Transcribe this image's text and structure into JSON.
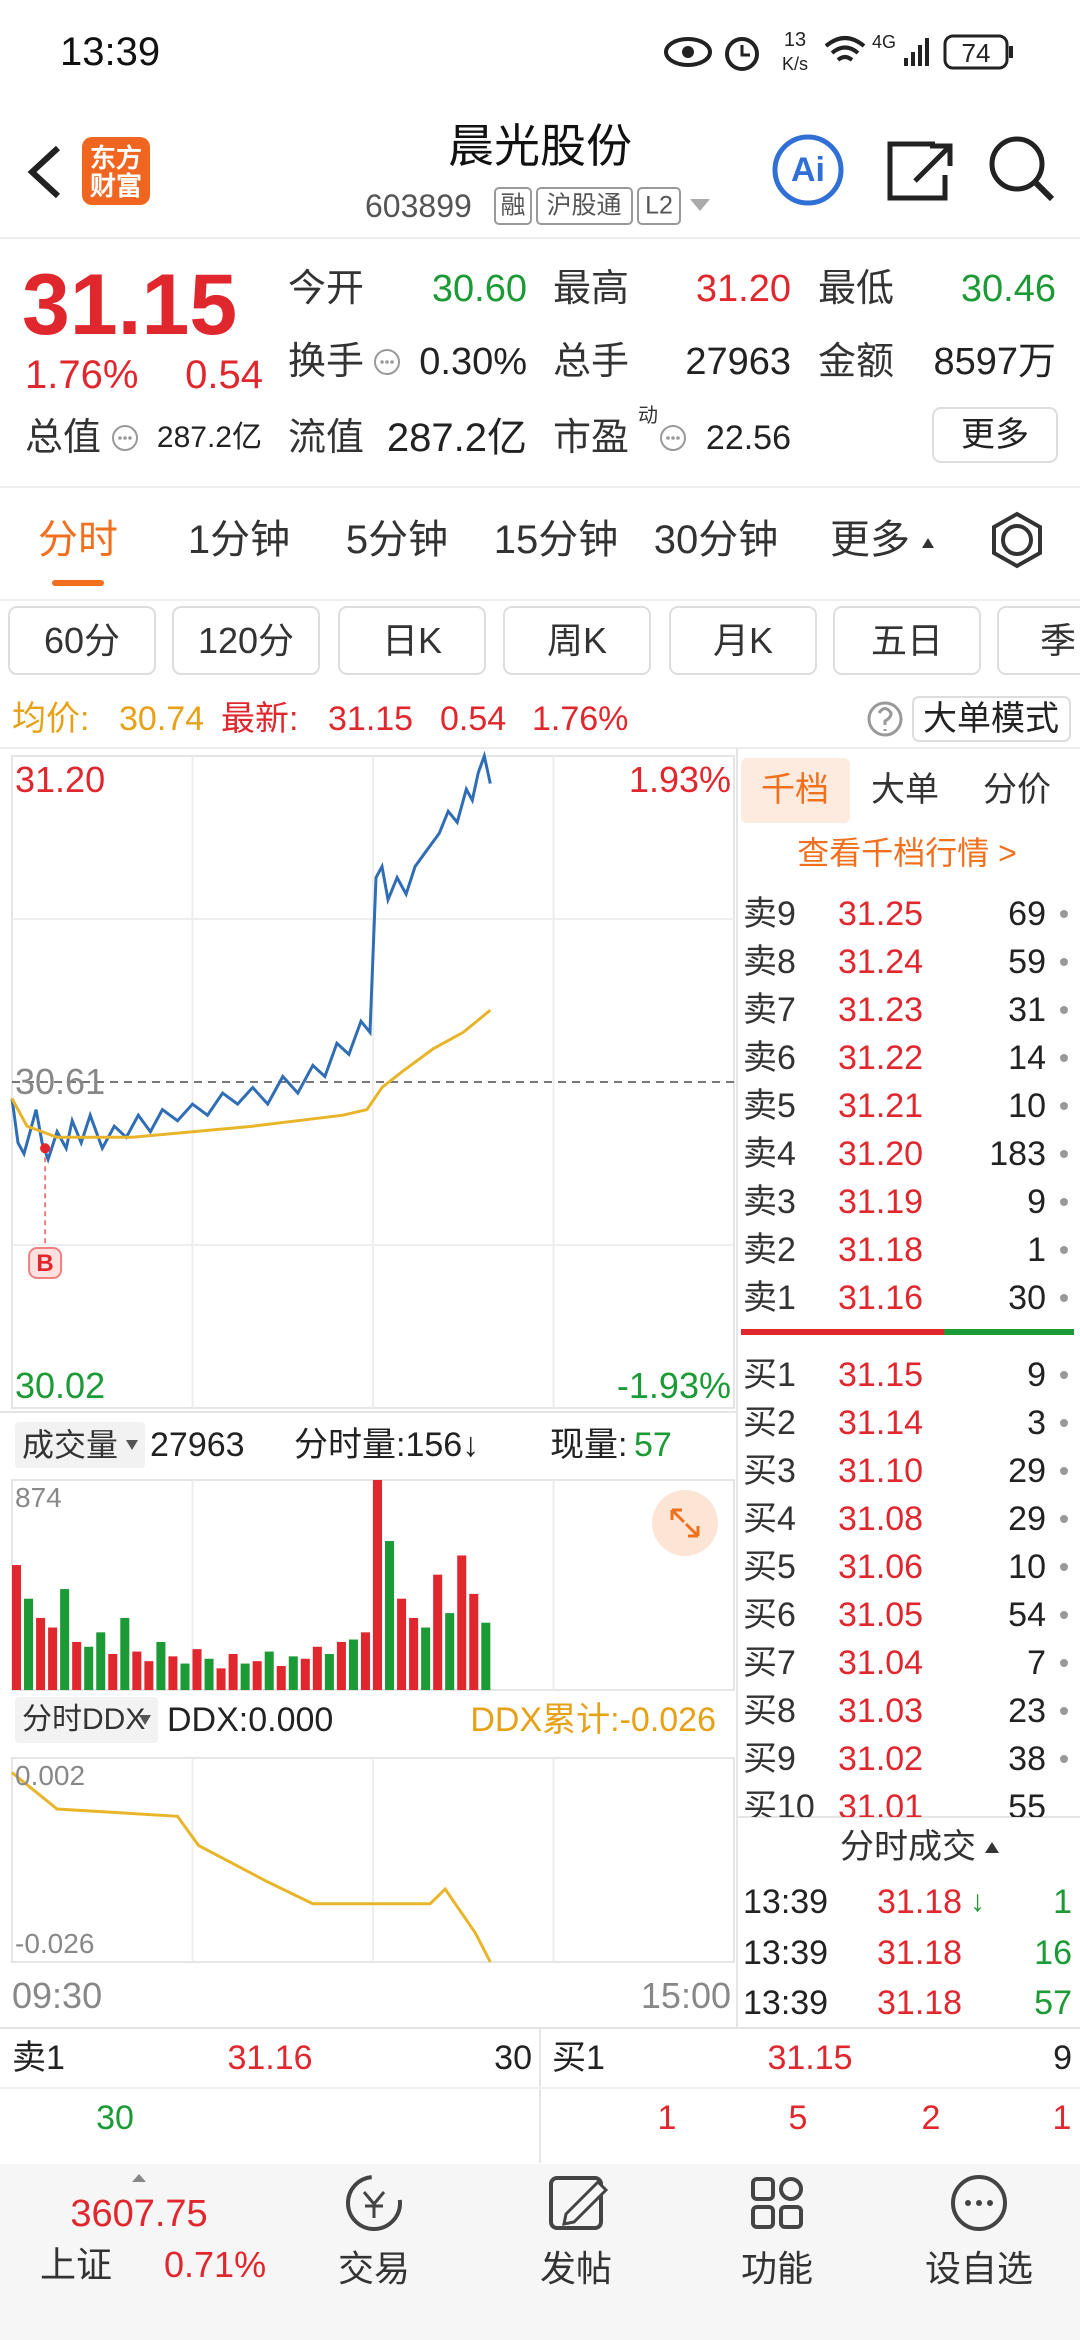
{
  "status_bar": {
    "time": "13:39",
    "speed": "13",
    "speed_unit": "K/s",
    "network": "4G",
    "battery": "74"
  },
  "header": {
    "logo": [
      "东方",
      "财富"
    ],
    "title": "晨光股份",
    "code": "603899",
    "tags": [
      "融",
      "沪股通",
      "L2"
    ],
    "ai": "Ai"
  },
  "quote": {
    "price": "31.15",
    "change_pct": "1.76%",
    "change": "0.54",
    "fields": [
      {
        "label": "今开",
        "value": "30.60"
      },
      {
        "label": "最高",
        "value": "31.20"
      },
      {
        "label": "最低",
        "value": "30.46"
      },
      {
        "label": "换手",
        "value": "0.30%"
      },
      {
        "label": "总手",
        "value": "27963"
      },
      {
        "label": "金额",
        "value": "8597万"
      },
      {
        "label": "总值",
        "value": "287.2亿"
      },
      {
        "label": "流值",
        "value": "287.2亿"
      },
      {
        "label": "市盈",
        "sup": "动",
        "value": "22.56"
      }
    ],
    "more": "更多"
  },
  "tabs": [
    "分时",
    "1分钟",
    "5分钟",
    "15分钟",
    "30分钟",
    "更多"
  ],
  "periods": [
    "60分",
    "120分",
    "日K",
    "周K",
    "月K",
    "五日",
    "季"
  ],
  "info": {
    "avg_label": "均价:",
    "avg": "30.74",
    "latest_label": "最新:",
    "latest": "31.15",
    "change": "0.54",
    "change_pct": "1.76%",
    "mode": "大单模式"
  },
  "chart_data": [
    {
      "type": "line",
      "x": [
        "09:30",
        "09:32",
        "09:34",
        "09:36",
        "09:38",
        "09:40",
        "09:42",
        "09:45",
        "09:48",
        "09:50",
        "09:53",
        "09:56",
        "09:58",
        "10:00",
        "10:04",
        "10:08",
        "10:12",
        "10:16",
        "10:20",
        "10:25",
        "10:30",
        "10:35",
        "10:40",
        "10:45",
        "10:50",
        "10:55",
        "11:00",
        "11:05",
        "11:10",
        "11:14",
        "11:18",
        "11:22",
        "11:26",
        "11:29",
        "13:01",
        "13:03",
        "13:05",
        "13:08",
        "13:11",
        "13:14",
        "13:18",
        "13:22",
        "13:25",
        "13:28",
        "13:31",
        "13:33",
        "13:35",
        "13:37",
        "13:39"
      ],
      "series": [
        {
          "color": "#2f6db5",
          "values": [
            30.58,
            30.5,
            30.48,
            30.52,
            30.56,
            30.5,
            30.47,
            30.52,
            30.49,
            30.54,
            30.5,
            30.55,
            30.52,
            30.49,
            30.53,
            30.51,
            30.55,
            30.52,
            30.56,
            30.54,
            30.57,
            30.55,
            30.59,
            30.57,
            30.6,
            30.57,
            30.62,
            30.59,
            30.64,
            30.62,
            30.68,
            30.66,
            30.72,
            30.7,
            30.98,
            31.0,
            30.94,
            30.98,
            30.95,
            31.0,
            31.03,
            31.06,
            31.1,
            31.08,
            31.14,
            31.12,
            31.17,
            31.2,
            31.15
          ]
        },
        {
          "color": "#e8b52a",
          "x": [
            "09:30",
            "09:35",
            "09:45",
            "10:10",
            "10:50",
            "11:20",
            "11:28",
            "13:03",
            "13:10",
            "13:20",
            "13:30",
            "13:39"
          ],
          "values": [
            30.58,
            30.53,
            30.51,
            30.51,
            30.53,
            30.55,
            30.56,
            30.6,
            30.63,
            30.67,
            30.7,
            30.74
          ]
        }
      ],
      "xlim": [
        "09:30",
        "15:00"
      ],
      "ylim": [
        30.02,
        31.2
      ],
      "yticks": [
        {
          "value": 31.2,
          "label": "31.20"
        },
        {
          "value": 30.61,
          "label": "30.61"
        },
        {
          "value": 30.02,
          "label": "30.02"
        }
      ],
      "y2lim": [
        -1.93,
        1.93
      ],
      "y2ticks": [
        {
          "value": 1.93,
          "label": "1.93%"
        },
        {
          "value": -1.93,
          "label": "-1.93%"
        }
      ],
      "marker": {
        "x": "09:41",
        "value": 30.49,
        "label": "B"
      }
    },
    {
      "type": "bar",
      "title": "成交量",
      "total": "27963",
      "period_volume": "分时量:156↓",
      "current_label": "现量:",
      "current": "57",
      "x": [
        "09:30",
        "09:34",
        "09:38",
        "09:42",
        "09:46",
        "09:50",
        "09:54",
        "09:58",
        "10:02",
        "10:06",
        "10:10",
        "10:14",
        "10:18",
        "10:22",
        "10:26",
        "10:30",
        "10:34",
        "10:38",
        "10:42",
        "10:46",
        "10:50",
        "10:54",
        "10:58",
        "11:02",
        "11:06",
        "11:10",
        "11:14",
        "11:18",
        "11:22",
        "11:26",
        "11:30",
        "13:04",
        "13:08",
        "13:12",
        "13:16",
        "13:20",
        "13:24",
        "13:28",
        "13:32",
        "13:36"
      ],
      "values": [
        520,
        380,
        300,
        260,
        420,
        200,
        180,
        240,
        150,
        300,
        160,
        120,
        200,
        140,
        110,
        170,
        130,
        90,
        150,
        110,
        120,
        160,
        100,
        140,
        130,
        180,
        150,
        200,
        210,
        240,
        874,
        620,
        380,
        300,
        260,
        480,
        320,
        560,
        400,
        280
      ],
      "colors": [
        "#e0272d",
        "#1b9a35",
        "#e0272d",
        "#e0272d",
        "#1b9a35",
        "#e0272d",
        "#1b9a35",
        "#1b9a35",
        "#e0272d",
        "#1b9a35",
        "#e0272d",
        "#e0272d",
        "#1b9a35",
        "#e0272d",
        "#1b9a35",
        "#e0272d",
        "#1b9a35",
        "#e0272d",
        "#e0272d",
        "#1b9a35",
        "#e0272d",
        "#1b9a35",
        "#e0272d",
        "#1b9a35",
        "#e0272d",
        "#e0272d",
        "#1b9a35",
        "#e0272d",
        "#1b9a35",
        "#e0272d",
        "#e0272d",
        "#1b9a35",
        "#e0272d",
        "#e0272d",
        "#1b9a35",
        "#e0272d",
        "#1b9a35",
        "#e0272d",
        "#e0272d",
        "#1b9a35"
      ],
      "xlim": [
        "09:30",
        "15:00"
      ],
      "ylim": [
        0,
        874
      ],
      "yticks": [
        874
      ]
    },
    {
      "type": "line",
      "title": "分时DDX",
      "ddx": "DDX:0.000",
      "ddx_total": "DDX累计:-0.026",
      "x": [
        "09:30",
        "09:45",
        "10:25",
        "10:32",
        "10:55",
        "11:10",
        "13:19",
        "13:24",
        "13:34",
        "13:39"
      ],
      "series": [
        {
          "color": "#e8b52a",
          "values": [
            0.0,
            -0.005,
            -0.006,
            -0.01,
            -0.015,
            -0.018,
            -0.018,
            -0.016,
            -0.022,
            -0.026
          ]
        }
      ],
      "xlim": [
        "09:30",
        "15:00"
      ],
      "xticks": [
        "09:30",
        "15:00"
      ],
      "ylim": [
        -0.026,
        0.002
      ],
      "yticks": [
        0.002,
        -0.026
      ]
    }
  ],
  "order_book": {
    "tabs": [
      "千档",
      "大单",
      "分价"
    ],
    "link": "查看千档行情 >",
    "asks": [
      {
        "label": "卖9",
        "price": "31.25",
        "qty": "69"
      },
      {
        "label": "卖8",
        "price": "31.24",
        "qty": "59"
      },
      {
        "label": "卖7",
        "price": "31.23",
        "qty": "31"
      },
      {
        "label": "卖6",
        "price": "31.22",
        "qty": "14"
      },
      {
        "label": "卖5",
        "price": "31.21",
        "qty": "10"
      },
      {
        "label": "卖4",
        "price": "31.20",
        "qty": "183"
      },
      {
        "label": "卖3",
        "price": "31.19",
        "qty": "9"
      },
      {
        "label": "卖2",
        "price": "31.18",
        "qty": "1"
      },
      {
        "label": "卖1",
        "price": "31.16",
        "qty": "30"
      }
    ],
    "bids": [
      {
        "label": "买1",
        "price": "31.15",
        "qty": "9"
      },
      {
        "label": "买2",
        "price": "31.14",
        "qty": "3"
      },
      {
        "label": "买3",
        "price": "31.10",
        "qty": "29"
      },
      {
        "label": "买4",
        "price": "31.08",
        "qty": "29"
      },
      {
        "label": "买5",
        "price": "31.06",
        "qty": "10"
      },
      {
        "label": "买6",
        "price": "31.05",
        "qty": "54"
      },
      {
        "label": "买7",
        "price": "31.04",
        "qty": "7"
      },
      {
        "label": "买8",
        "price": "31.03",
        "qty": "23"
      },
      {
        "label": "买9",
        "price": "31.02",
        "qty": "38"
      },
      {
        "label": "买10",
        "price": "31.01",
        "qty": "55"
      }
    ]
  },
  "trades": {
    "title": "分时成交",
    "rows": [
      {
        "time": "13:39",
        "price": "31.18",
        "arrow": "↓",
        "qty": "1"
      },
      {
        "time": "13:39",
        "price": "31.18",
        "qty": "16"
      },
      {
        "time": "13:39",
        "price": "31.18",
        "qty": "57"
      }
    ]
  },
  "bottom_quote": {
    "ask": {
      "label": "卖1",
      "price": "31.16",
      "qty": "30"
    },
    "bid": {
      "label": "买1",
      "price": "31.15",
      "qty": "9"
    },
    "ask_queue": [
      "30"
    ],
    "bid_queue": [
      "1",
      "5",
      "2",
      "1"
    ]
  },
  "nav": {
    "index": {
      "value": "3607.75",
      "name": "上证",
      "change": "0.71%"
    },
    "items": [
      "交易",
      "发帖",
      "功能",
      "设自选"
    ]
  }
}
